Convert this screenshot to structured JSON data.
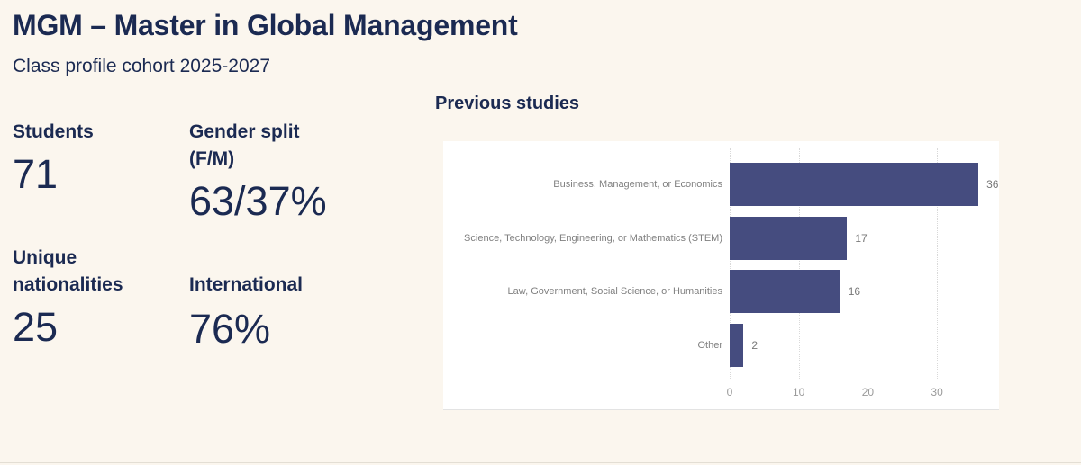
{
  "page": {
    "title": "MGM – Master in Global Management",
    "subtitle": "Class profile cohort 2025-2027"
  },
  "stats": [
    {
      "label": "Students",
      "value": "71"
    },
    {
      "label": "Gender split (F/M)",
      "value": "63/37%"
    },
    {
      "label": "Unique nationalities",
      "value": "25"
    },
    {
      "label": "International",
      "value": "76%"
    }
  ],
  "chart": {
    "title": "Previous studies"
  },
  "chart_data": {
    "type": "bar",
    "orientation": "horizontal",
    "title": "Previous studies",
    "categories": [
      "Business, Management, or Economics",
      "Science, Technology, Engineering, or Mathematics (STEM)",
      "Law, Government, Social Science, or Humanities",
      "Other"
    ],
    "values": [
      36,
      17,
      16,
      2
    ],
    "xlabel": "",
    "ylabel": "",
    "xlim": [
      0,
      38
    ],
    "xticks": [
      0,
      10,
      20,
      30
    ],
    "grid": "vertical-dotted",
    "legend": "none"
  },
  "colors": {
    "background": "#fbf6ee",
    "navy": "#1b2a52",
    "bar": "#454c7f",
    "gray_label": "#808080",
    "gridline": "#d9d9d9",
    "panel_background": "#ffffff"
  }
}
